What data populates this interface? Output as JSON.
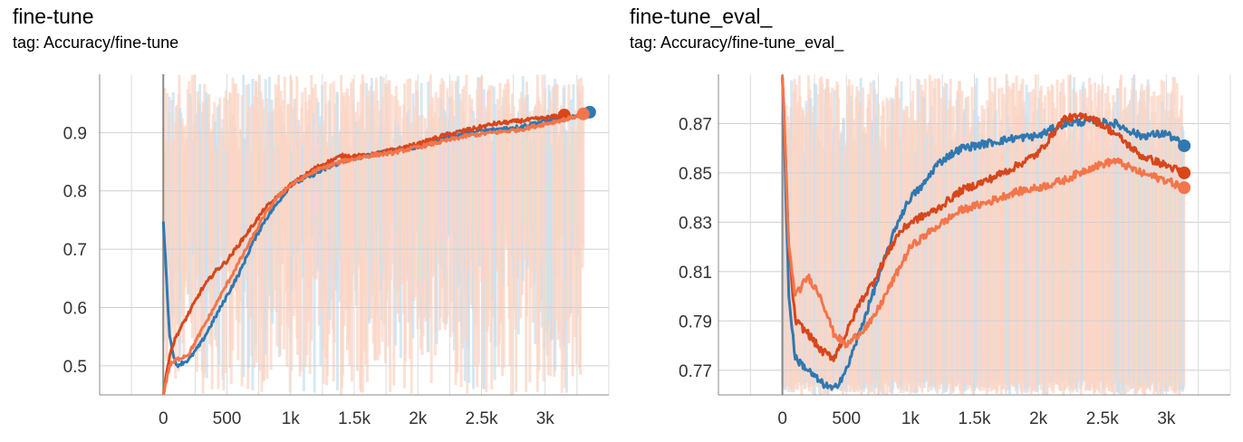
{
  "panels": [
    {
      "title": "fine-tune",
      "subtitle": "tag: Accuracy/fine-tune"
    },
    {
      "title": "fine-tune_eval_",
      "subtitle": "tag: Accuracy/fine-tune_eval_"
    }
  ],
  "chart_data": [
    {
      "type": "line",
      "title": "fine-tune",
      "subtitle": "tag: Accuracy/fine-tune",
      "xlabel": "",
      "ylabel": "",
      "xlim": [
        -500,
        3500
      ],
      "ylim": [
        0.45,
        1.0
      ],
      "x_ticks": [
        0,
        500,
        1000,
        1500,
        2000,
        2500,
        3000
      ],
      "x_tick_labels": [
        "0",
        "500",
        "1k",
        "1.5k",
        "2k",
        "2.5k",
        "3k"
      ],
      "y_ticks": [
        0.5,
        0.6,
        0.7,
        0.8,
        0.9
      ],
      "y_tick_labels": [
        "0.5",
        "0.6",
        "0.7",
        "0.8",
        "0.9"
      ],
      "grid": true,
      "legend": "none",
      "colors": {
        "blue": "#2f78b1",
        "red": "#d8461b",
        "orange": "#f4754a",
        "raw_orange": "#fbd5c6",
        "raw_blue": "#c7e0f1"
      },
      "series": [
        {
          "color": "#2f78b1",
          "x": [
            0,
            50,
            100,
            200,
            300,
            400,
            500,
            600,
            700,
            800,
            900,
            1000,
            1200,
            1400,
            1600,
            1800,
            2000,
            2200,
            2400,
            2600,
            2800,
            3000,
            3200,
            3350
          ],
          "y": [
            0.75,
            0.55,
            0.5,
            0.51,
            0.54,
            0.58,
            0.62,
            0.66,
            0.71,
            0.75,
            0.78,
            0.81,
            0.83,
            0.85,
            0.86,
            0.87,
            0.875,
            0.89,
            0.9,
            0.905,
            0.91,
            0.92,
            0.925,
            0.935
          ]
        },
        {
          "color": "#d8461b",
          "x": [
            0,
            50,
            100,
            200,
            300,
            400,
            500,
            600,
            700,
            800,
            900,
            1000,
            1200,
            1400,
            1600,
            1800,
            2000,
            2200,
            2400,
            2600,
            2800,
            3000,
            3150
          ],
          "y": [
            0.45,
            0.52,
            0.55,
            0.59,
            0.63,
            0.66,
            0.68,
            0.71,
            0.74,
            0.77,
            0.79,
            0.81,
            0.84,
            0.86,
            0.86,
            0.87,
            0.88,
            0.895,
            0.905,
            0.915,
            0.92,
            0.925,
            0.93
          ]
        },
        {
          "color": "#f4754a",
          "x": [
            0,
            50,
            100,
            200,
            300,
            400,
            500,
            600,
            700,
            800,
            900,
            1000,
            1200,
            1400,
            1600,
            1800,
            2000,
            2200,
            2400,
            2600,
            2800,
            3000,
            3200,
            3300
          ],
          "y": [
            0.45,
            0.5,
            0.51,
            0.52,
            0.56,
            0.6,
            0.64,
            0.68,
            0.72,
            0.76,
            0.79,
            0.81,
            0.835,
            0.85,
            0.86,
            0.865,
            0.875,
            0.885,
            0.895,
            0.9,
            0.905,
            0.915,
            0.925,
            0.932
          ]
        }
      ]
    },
    {
      "type": "line",
      "title": "fine-tune_eval_",
      "subtitle": "tag: Accuracy/fine-tune_eval_",
      "xlabel": "",
      "ylabel": "",
      "xlim": [
        -500,
        3500
      ],
      "ylim": [
        0.76,
        0.89
      ],
      "x_ticks": [
        0,
        500,
        1000,
        1500,
        2000,
        2500,
        3000
      ],
      "x_tick_labels": [
        "0",
        "500",
        "1k",
        "1.5k",
        "2k",
        "2.5k",
        "3k"
      ],
      "y_ticks": [
        0.77,
        0.79,
        0.81,
        0.83,
        0.85,
        0.87
      ],
      "y_tick_labels": [
        "0.77",
        "0.79",
        "0.81",
        "0.83",
        "0.85",
        "0.87"
      ],
      "grid": true,
      "legend": "none",
      "colors": {
        "blue": "#2f78b1",
        "red": "#d8461b",
        "orange": "#f4754a",
        "raw_orange": "#fbd5c6",
        "raw_blue": "#c7e0f1"
      },
      "series": [
        {
          "color": "#2f78b1",
          "x": [
            0,
            50,
            100,
            200,
            300,
            400,
            500,
            600,
            700,
            800,
            900,
            1000,
            1100,
            1200,
            1300,
            1400,
            1600,
            1800,
            2000,
            2200,
            2400,
            2600,
            2800,
            3000,
            3140
          ],
          "y": [
            0.89,
            0.8,
            0.775,
            0.77,
            0.765,
            0.762,
            0.77,
            0.785,
            0.8,
            0.815,
            0.83,
            0.84,
            0.845,
            0.853,
            0.857,
            0.86,
            0.862,
            0.864,
            0.865,
            0.87,
            0.871,
            0.87,
            0.865,
            0.866,
            0.861
          ]
        },
        {
          "color": "#d8461b",
          "x": [
            0,
            50,
            100,
            200,
            300,
            400,
            500,
            600,
            700,
            800,
            900,
            1000,
            1200,
            1400,
            1600,
            1800,
            2000,
            2200,
            2400,
            2600,
            2800,
            3000,
            3140
          ],
          "y": [
            0.89,
            0.82,
            0.79,
            0.785,
            0.778,
            0.775,
            0.785,
            0.797,
            0.805,
            0.815,
            0.825,
            0.83,
            0.835,
            0.843,
            0.847,
            0.852,
            0.858,
            0.872,
            0.873,
            0.866,
            0.857,
            0.853,
            0.85
          ]
        },
        {
          "color": "#f4754a",
          "x": [
            0,
            50,
            100,
            200,
            300,
            400,
            500,
            600,
            700,
            800,
            900,
            1000,
            1200,
            1400,
            1600,
            1800,
            2000,
            2200,
            2400,
            2600,
            2800,
            3000,
            3140
          ],
          "y": [
            0.89,
            0.82,
            0.8,
            0.808,
            0.8,
            0.785,
            0.78,
            0.785,
            0.79,
            0.8,
            0.81,
            0.82,
            0.828,
            0.835,
            0.838,
            0.842,
            0.844,
            0.847,
            0.852,
            0.855,
            0.85,
            0.847,
            0.844
          ]
        }
      ]
    }
  ]
}
